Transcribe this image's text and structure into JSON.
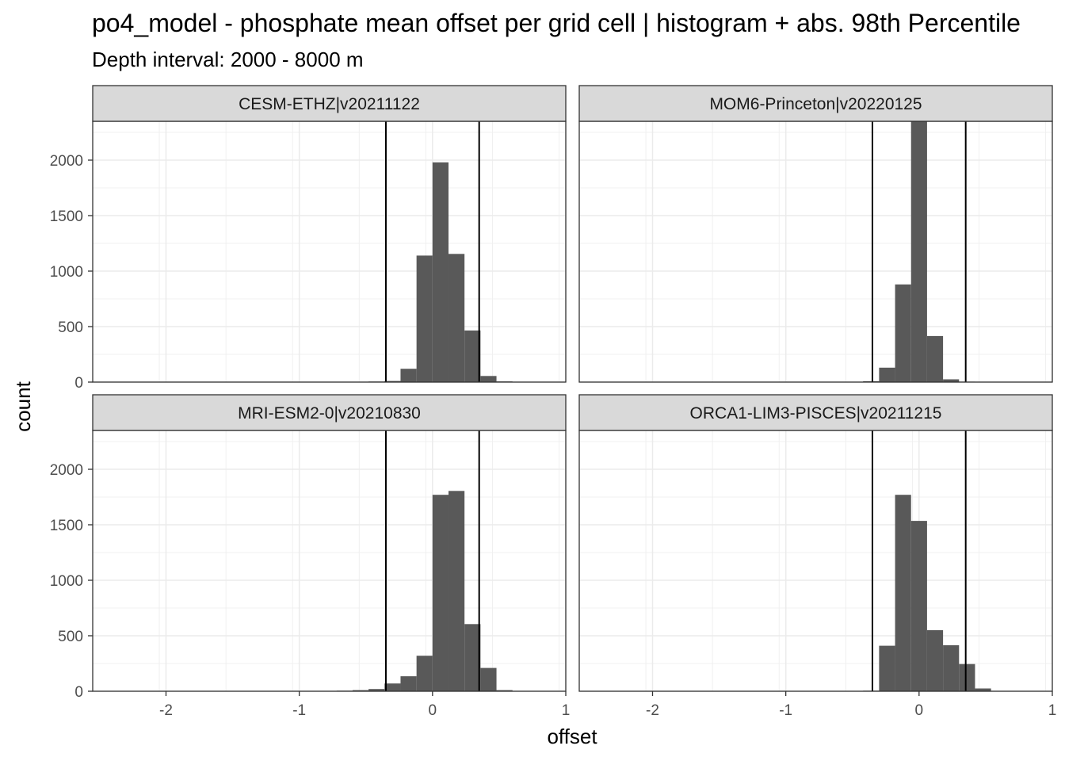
{
  "title": "po4_model  -  phosphate mean offset per grid cell | histogram + abs. 98th Percentile",
  "subtitle": "Depth interval: 2000 - 8000 m",
  "xlabel": "offset",
  "ylabel": "count",
  "chart_data": {
    "type": "bar",
    "title": "po4_model  -  phosphate mean offset per grid cell | histogram + abs. 98th Percentile",
    "subtitle": "Depth interval: 2000 - 8000 m",
    "xlabel": "offset",
    "ylabel": "count",
    "xlim": [
      -2.55,
      1.0
    ],
    "ylim": [
      0,
      2350
    ],
    "x_ticks": [
      -2,
      -1,
      0,
      1
    ],
    "x_tick_labels": [
      "-2",
      "-1",
      "0",
      "1"
    ],
    "y_ticks": [
      0,
      500,
      1000,
      1500,
      2000
    ],
    "y_tick_labels": [
      "0",
      "500",
      "1000",
      "1500",
      "2000"
    ],
    "bin_width": 0.12,
    "percentile_lines": [
      -0.35,
      0.35
    ],
    "grid": true,
    "layout": "2x2 facets",
    "panels": [
      {
        "name": "CESM-ETHZ|v20211122",
        "bins": [
          {
            "x": -0.66,
            "count": 2
          },
          {
            "x": -0.54,
            "count": 3
          },
          {
            "x": -0.42,
            "count": 5
          },
          {
            "x": -0.3,
            "count": 10
          },
          {
            "x": -0.18,
            "count": 120
          },
          {
            "x": -0.06,
            "count": 1140
          },
          {
            "x": 0.06,
            "count": 1980
          },
          {
            "x": 0.18,
            "count": 1155
          },
          {
            "x": 0.3,
            "count": 465
          },
          {
            "x": 0.42,
            "count": 55
          },
          {
            "x": 0.54,
            "count": 6
          },
          {
            "x": 0.66,
            "count": 2
          },
          {
            "x": 0.78,
            "count": 1
          }
        ]
      },
      {
        "name": "MOM6-Princeton|v20220125",
        "bins": [
          {
            "x": -0.36,
            "count": 8
          },
          {
            "x": -0.24,
            "count": 130
          },
          {
            "x": -0.12,
            "count": 880
          },
          {
            "x": 0.0,
            "count": 2600
          },
          {
            "x": 0.12,
            "count": 415
          },
          {
            "x": 0.24,
            "count": 25
          },
          {
            "x": 0.36,
            "count": 4
          }
        ]
      },
      {
        "name": "MRI-ESM2-0|v20210830",
        "bins": [
          {
            "x": -0.78,
            "count": 3
          },
          {
            "x": -0.66,
            "count": 5
          },
          {
            "x": -0.54,
            "count": 10
          },
          {
            "x": -0.42,
            "count": 20
          },
          {
            "x": -0.3,
            "count": 70
          },
          {
            "x": -0.18,
            "count": 135
          },
          {
            "x": -0.06,
            "count": 320
          },
          {
            "x": 0.06,
            "count": 1770
          },
          {
            "x": 0.18,
            "count": 1805
          },
          {
            "x": 0.3,
            "count": 605
          },
          {
            "x": 0.42,
            "count": 210
          },
          {
            "x": 0.54,
            "count": 10
          },
          {
            "x": 0.66,
            "count": 3
          }
        ]
      },
      {
        "name": "ORCA1-LIM3-PISCES|v20211215",
        "bins": [
          {
            "x": -0.36,
            "count": 5
          },
          {
            "x": -0.24,
            "count": 410
          },
          {
            "x": -0.12,
            "count": 1770
          },
          {
            "x": 0.0,
            "count": 1535
          },
          {
            "x": 0.12,
            "count": 550
          },
          {
            "x": 0.24,
            "count": 415
          },
          {
            "x": 0.36,
            "count": 245
          },
          {
            "x": 0.48,
            "count": 25
          },
          {
            "x": 0.6,
            "count": 3
          }
        ]
      }
    ]
  }
}
